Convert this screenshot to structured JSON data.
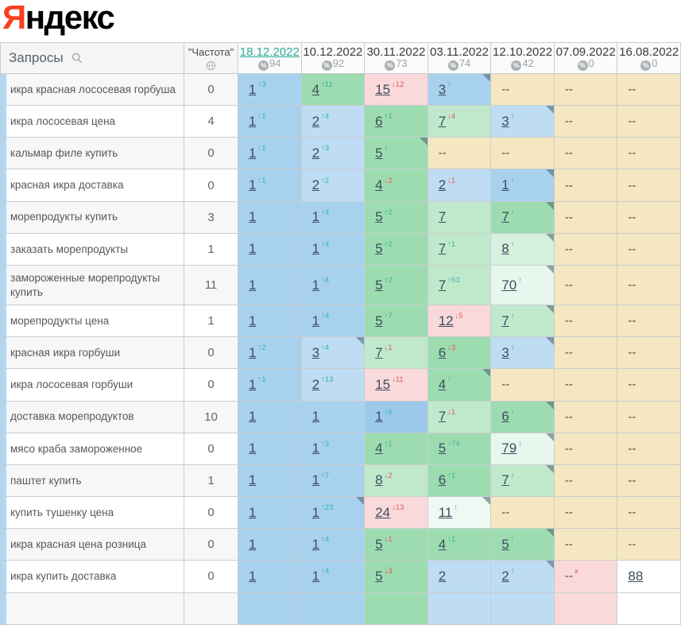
{
  "logo": {
    "first_letter": "Я",
    "rest": "ндекс"
  },
  "palette": {
    "accent": "#fc3f1d",
    "border": "#c9cdce",
    "header_bg": "#f5f5f5",
    "date_header_bg": "#fbfbfb",
    "zebra": "#f7f7f7",
    "white_row": "#ffffff",
    "strip": "#b0d7f3",
    "link": "#3d4d5d",
    "up": "#36b5a1",
    "down": "#e05c5c",
    "active_date": "#2cab99",
    "score_gray": "#9ca2a7",
    "triangle": "rgba(70,95,110,0.55)",
    "blue0": "#9cc8ea",
    "blue1": "#a8d1ee",
    "blue2": "#bedcf3",
    "green1": "#9ddcb0",
    "green2": "#c0e9cc",
    "green3": "#d6f1de",
    "palegreen": "#e8f7ee",
    "palegreen2": "#eff9f3",
    "pink": "#f9d9da",
    "tan": "#f5e7c1",
    "white": "#ffffff"
  },
  "header": {
    "queries_label": "Запросы",
    "frequency_label": "\"Частота\"",
    "dates": [
      {
        "label": "18.12.2022",
        "score": "94",
        "active": true
      },
      {
        "label": "10.12.2022",
        "score": "92",
        "active": false
      },
      {
        "label": "30.11.2022",
        "score": "73",
        "active": false
      },
      {
        "label": "03.11.2022",
        "score": "74",
        "active": false
      },
      {
        "label": "12.10.2022",
        "score": "42",
        "active": false
      },
      {
        "label": "07.09.2022",
        "score": "0",
        "active": false
      },
      {
        "label": "16.08.2022",
        "score": "0",
        "active": false
      }
    ]
  },
  "rows": [
    {
      "query": "икра красная лососевая горбуша",
      "frequency": "0",
      "tall": false,
      "cells": [
        {
          "pos": "1",
          "sup": "↑3",
          "sup_dir": "up",
          "bg": "blue1",
          "link": true
        },
        {
          "pos": "4",
          "sup": "↑11",
          "sup_dir": "up",
          "bg": "green1",
          "link": true
        },
        {
          "pos": "15",
          "sup": "↓12",
          "sup_dir": "down",
          "bg": "pink",
          "link": true
        },
        {
          "pos": "3",
          "sup": "↑",
          "sup_dir": "up",
          "bg": "blue1",
          "link": true,
          "tri": true
        },
        {
          "pos": "--",
          "bg": "tan"
        },
        {
          "pos": "--",
          "bg": "tan"
        },
        {
          "pos": "--",
          "bg": "tan"
        }
      ]
    },
    {
      "query": "икра лососевая цена",
      "frequency": "4",
      "tall": false,
      "cells": [
        {
          "pos": "1",
          "sup": "↑1",
          "sup_dir": "up",
          "bg": "blue1",
          "link": true
        },
        {
          "pos": "2",
          "sup": "↑4",
          "sup_dir": "up",
          "bg": "blue2",
          "link": true
        },
        {
          "pos": "6",
          "sup": "↑1",
          "sup_dir": "up",
          "bg": "green1",
          "link": true
        },
        {
          "pos": "7",
          "sup": "↓4",
          "sup_dir": "down",
          "bg": "green2",
          "link": true
        },
        {
          "pos": "3",
          "sup": "↑",
          "sup_dir": "up",
          "bg": "blue2",
          "link": true,
          "tri": true
        },
        {
          "pos": "--",
          "bg": "tan"
        },
        {
          "pos": "--",
          "bg": "tan"
        }
      ]
    },
    {
      "query": "кальмар филе купить",
      "frequency": "0",
      "tall": false,
      "cells": [
        {
          "pos": "1",
          "sup": "↑1",
          "sup_dir": "up",
          "bg": "blue1",
          "link": true
        },
        {
          "pos": "2",
          "sup": "↑3",
          "sup_dir": "up",
          "bg": "blue2",
          "link": true
        },
        {
          "pos": "5",
          "sup": "↑",
          "sup_dir": "up",
          "bg": "green1",
          "link": true,
          "tri": true
        },
        {
          "pos": "--",
          "bg": "tan"
        },
        {
          "pos": "--",
          "bg": "tan"
        },
        {
          "pos": "--",
          "bg": "tan"
        },
        {
          "pos": "--",
          "bg": "tan"
        }
      ]
    },
    {
      "query": "красная икра доставка",
      "frequency": "0",
      "tall": false,
      "cells": [
        {
          "pos": "1",
          "sup": "↑1",
          "sup_dir": "up",
          "bg": "blue1",
          "link": true
        },
        {
          "pos": "2",
          "sup": "↑2",
          "sup_dir": "up",
          "bg": "blue2",
          "link": true
        },
        {
          "pos": "4",
          "sup": "↓2",
          "sup_dir": "down",
          "bg": "green1",
          "link": true
        },
        {
          "pos": "2",
          "sup": "↓1",
          "sup_dir": "down",
          "bg": "blue2",
          "link": true
        },
        {
          "pos": "1",
          "sup": "↑",
          "sup_dir": "up",
          "bg": "blue1",
          "link": true,
          "tri": true
        },
        {
          "pos": "--",
          "bg": "tan"
        },
        {
          "pos": "--",
          "bg": "tan"
        }
      ]
    },
    {
      "query": "морепродукты купить",
      "frequency": "3",
      "tall": false,
      "cells": [
        {
          "pos": "1",
          "bg": "blue1",
          "link": true
        },
        {
          "pos": "1",
          "sup": "↑4",
          "sup_dir": "up",
          "bg": "blue1",
          "link": true
        },
        {
          "pos": "5",
          "sup": "↑2",
          "sup_dir": "up",
          "bg": "green1",
          "link": true
        },
        {
          "pos": "7",
          "bg": "green2",
          "link": true
        },
        {
          "pos": "7",
          "sup": "↑",
          "sup_dir": "up",
          "bg": "green1",
          "link": true,
          "tri": true
        },
        {
          "pos": "--",
          "bg": "tan"
        },
        {
          "pos": "--",
          "bg": "tan"
        }
      ]
    },
    {
      "query": "заказать морепродукты",
      "frequency": "1",
      "tall": false,
      "cells": [
        {
          "pos": "1",
          "bg": "blue1",
          "link": true
        },
        {
          "pos": "1",
          "sup": "↑4",
          "sup_dir": "up",
          "bg": "blue1",
          "link": true
        },
        {
          "pos": "5",
          "sup": "↑2",
          "sup_dir": "up",
          "bg": "green1",
          "link": true
        },
        {
          "pos": "7",
          "sup": "↑1",
          "sup_dir": "up",
          "bg": "green2",
          "link": true
        },
        {
          "pos": "8",
          "sup": "↑",
          "sup_dir": "up",
          "bg": "green3",
          "link": true,
          "tri": true
        },
        {
          "pos": "--",
          "bg": "tan"
        },
        {
          "pos": "--",
          "bg": "tan"
        }
      ]
    },
    {
      "query": "замороженные морепродукты купить",
      "frequency": "11",
      "tall": true,
      "cells": [
        {
          "pos": "1",
          "bg": "blue1",
          "link": true
        },
        {
          "pos": "1",
          "sup": "↑4",
          "sup_dir": "up",
          "bg": "blue1",
          "link": true
        },
        {
          "pos": "5",
          "sup": "↑2",
          "sup_dir": "up",
          "bg": "green1",
          "link": true
        },
        {
          "pos": "7",
          "sup": "↑63",
          "sup_dir": "up",
          "bg": "green2",
          "link": true
        },
        {
          "pos": "70",
          "sup": "↑",
          "sup_dir": "up",
          "bg": "palegreen",
          "link": true,
          "tri": true
        },
        {
          "pos": "--",
          "bg": "tan"
        },
        {
          "pos": "--",
          "bg": "tan"
        }
      ]
    },
    {
      "query": "морепродукты цена",
      "frequency": "1",
      "tall": false,
      "cells": [
        {
          "pos": "1",
          "bg": "blue1",
          "link": true
        },
        {
          "pos": "1",
          "sup": "↑4",
          "sup_dir": "up",
          "bg": "blue1",
          "link": true
        },
        {
          "pos": "5",
          "sup": "↑7",
          "sup_dir": "up",
          "bg": "green1",
          "link": true
        },
        {
          "pos": "12",
          "sup": "↓5",
          "sup_dir": "down",
          "bg": "pink",
          "link": true
        },
        {
          "pos": "7",
          "sup": "↑",
          "sup_dir": "up",
          "bg": "green2",
          "link": true,
          "tri": true
        },
        {
          "pos": "--",
          "bg": "tan"
        },
        {
          "pos": "--",
          "bg": "tan"
        }
      ]
    },
    {
      "query": "красная икра горбуши",
      "frequency": "0",
      "tall": false,
      "cells": [
        {
          "pos": "1",
          "sup": "↑2",
          "sup_dir": "up",
          "bg": "blue1",
          "link": true
        },
        {
          "pos": "3",
          "sup": "↑4",
          "sup_dir": "up",
          "bg": "blue2",
          "link": true,
          "tri": true
        },
        {
          "pos": "7",
          "sup": "↓1",
          "sup_dir": "down",
          "bg": "green2",
          "link": true
        },
        {
          "pos": "6",
          "sup": "↓3",
          "sup_dir": "down",
          "bg": "green1",
          "link": true
        },
        {
          "pos": "3",
          "sup": "↑",
          "sup_dir": "up",
          "bg": "blue2",
          "link": true,
          "tri": true
        },
        {
          "pos": "--",
          "bg": "tan"
        },
        {
          "pos": "--",
          "bg": "tan"
        }
      ]
    },
    {
      "query": "икра лососевая горбуши",
      "frequency": "0",
      "tall": false,
      "cells": [
        {
          "pos": "1",
          "sup": "↑1",
          "sup_dir": "up",
          "bg": "blue1",
          "link": true
        },
        {
          "pos": "2",
          "sup": "↑13",
          "sup_dir": "up",
          "bg": "blue2",
          "link": true
        },
        {
          "pos": "15",
          "sup": "↓11",
          "sup_dir": "down",
          "bg": "pink",
          "link": true
        },
        {
          "pos": "4",
          "sup": "↑",
          "sup_dir": "up",
          "bg": "green1",
          "link": true,
          "tri": true
        },
        {
          "pos": "--",
          "bg": "tan"
        },
        {
          "pos": "--",
          "bg": "tan"
        },
        {
          "pos": "--",
          "bg": "tan"
        }
      ]
    },
    {
      "query": "доставка морепродуктов",
      "frequency": "10",
      "tall": false,
      "cells": [
        {
          "pos": "1",
          "bg": "blue1",
          "link": true
        },
        {
          "pos": "1",
          "bg": "blue1",
          "link": true
        },
        {
          "pos": "1",
          "sup": "↑6",
          "sup_dir": "up",
          "bg": "blue0",
          "link": true
        },
        {
          "pos": "7",
          "sup": "↓1",
          "sup_dir": "down",
          "bg": "green2",
          "link": true
        },
        {
          "pos": "6",
          "sup": "↑",
          "sup_dir": "up",
          "bg": "green1",
          "link": true,
          "tri": true
        },
        {
          "pos": "--",
          "bg": "tan"
        },
        {
          "pos": "--",
          "bg": "tan"
        }
      ]
    },
    {
      "query": "мясо краба замороженное",
      "frequency": "0",
      "tall": false,
      "cells": [
        {
          "pos": "1",
          "bg": "blue1",
          "link": true
        },
        {
          "pos": "1",
          "sup": "↑3",
          "sup_dir": "up",
          "bg": "blue1",
          "link": true
        },
        {
          "pos": "4",
          "sup": "↑1",
          "sup_dir": "up",
          "bg": "green1",
          "link": true
        },
        {
          "pos": "5",
          "sup": "↑74",
          "sup_dir": "up",
          "bg": "green1",
          "link": true
        },
        {
          "pos": "79",
          "sup": "↑",
          "sup_dir": "up",
          "bg": "palegreen",
          "link": true,
          "tri": true
        },
        {
          "pos": "--",
          "bg": "tan"
        },
        {
          "pos": "--",
          "bg": "tan"
        }
      ]
    },
    {
      "query": "паштет купить",
      "frequency": "1",
      "tall": false,
      "cells": [
        {
          "pos": "1",
          "bg": "blue1",
          "link": true
        },
        {
          "pos": "1",
          "sup": "↑7",
          "sup_dir": "up",
          "bg": "blue1",
          "link": true
        },
        {
          "pos": "8",
          "sup": "↓2",
          "sup_dir": "down",
          "bg": "green2",
          "link": true
        },
        {
          "pos": "6",
          "sup": "↑1",
          "sup_dir": "up",
          "bg": "green1",
          "link": true
        },
        {
          "pos": "7",
          "sup": "↑",
          "sup_dir": "up",
          "bg": "green2",
          "link": true,
          "tri": true
        },
        {
          "pos": "--",
          "bg": "tan"
        },
        {
          "pos": "--",
          "bg": "tan"
        }
      ]
    },
    {
      "query": "купить тушенку цена",
      "frequency": "0",
      "tall": false,
      "cells": [
        {
          "pos": "1",
          "bg": "blue1",
          "link": true
        },
        {
          "pos": "1",
          "sup": "↑23",
          "sup_dir": "up",
          "bg": "blue1",
          "link": true,
          "tri": true
        },
        {
          "pos": "24",
          "sup": "↓13",
          "sup_dir": "down",
          "bg": "pink",
          "link": true
        },
        {
          "pos": "11",
          "sup": "↑",
          "sup_dir": "up",
          "bg": "palegreen2",
          "link": true,
          "tri": true
        },
        {
          "pos": "--",
          "bg": "tan"
        },
        {
          "pos": "--",
          "bg": "tan"
        },
        {
          "pos": "--",
          "bg": "tan"
        }
      ]
    },
    {
      "query": "икра красная цена розница",
      "frequency": "0",
      "tall": false,
      "cells": [
        {
          "pos": "1",
          "bg": "blue1",
          "link": true
        },
        {
          "pos": "1",
          "sup": "↑4",
          "sup_dir": "up",
          "bg": "blue1",
          "link": true
        },
        {
          "pos": "5",
          "sup": "↓1",
          "sup_dir": "down",
          "bg": "green1",
          "link": true
        },
        {
          "pos": "4",
          "sup": "↑1",
          "sup_dir": "up",
          "bg": "green1",
          "link": true
        },
        {
          "pos": "5",
          "sup": "↑",
          "sup_dir": "up",
          "bg": "green1",
          "link": true,
          "tri": true
        },
        {
          "pos": "--",
          "bg": "tan"
        },
        {
          "pos": "--",
          "bg": "tan"
        }
      ]
    },
    {
      "query": "икра купить доставка",
      "frequency": "0",
      "tall": false,
      "cells": [
        {
          "pos": "1",
          "bg": "blue1",
          "link": true
        },
        {
          "pos": "1",
          "sup": "↑4",
          "sup_dir": "up",
          "bg": "blue1",
          "link": true
        },
        {
          "pos": "5",
          "sup": "↓3",
          "sup_dir": "down",
          "bg": "green1",
          "link": true
        },
        {
          "pos": "2",
          "bg": "blue2",
          "link": true
        },
        {
          "pos": "2",
          "sup": "↑",
          "sup_dir": "up",
          "bg": "blue2",
          "link": true,
          "tri": true
        },
        {
          "pos": "--",
          "sup": "x",
          "sup_dir": "down",
          "bg": "pink"
        },
        {
          "pos": "88",
          "bg": "white",
          "link": true
        }
      ]
    },
    {
      "query": "",
      "frequency": "",
      "tall": false,
      "partial": true,
      "cells": [
        {
          "pos": "",
          "bg": "blue1",
          "link": true
        },
        {
          "pos": "",
          "bg": "blue1",
          "link": true
        },
        {
          "pos": "",
          "bg": "green1",
          "link": true
        },
        {
          "pos": "",
          "bg": "blue2",
          "link": true
        },
        {
          "pos": "",
          "bg": "blue2",
          "link": true
        },
        {
          "pos": "",
          "bg": "pink"
        },
        {
          "pos": "",
          "bg": "white"
        }
      ]
    }
  ]
}
